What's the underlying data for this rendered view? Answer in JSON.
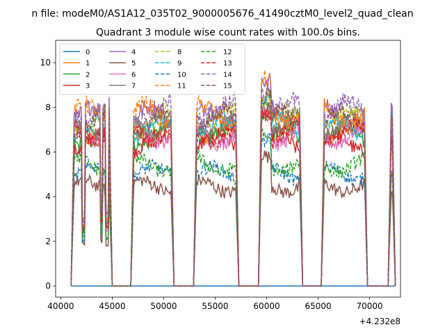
{
  "chart_data": {
    "type": "line",
    "suptitle": "n file: modeM0/AS1A12_035T02_9000005676_41490cztM0_level2_quad_clean",
    "title": "Quadrant 3 module wise count rates with 100.0s bins.",
    "xlabel": "",
    "ylabel": "",
    "x_offset_label": "+4.232e8",
    "xlim": [
      39500,
      73000
    ],
    "ylim": [
      -0.5,
      11.0
    ],
    "x_ticks": [
      40000,
      45000,
      50000,
      55000,
      60000,
      65000,
      70000
    ],
    "x_tick_labels": [
      "40000",
      "45000",
      "50000",
      "55000",
      "60000",
      "65000",
      "70000"
    ],
    "y_ticks": [
      0,
      2,
      4,
      6,
      8,
      10
    ],
    "y_tick_labels": [
      "0",
      "2",
      "4",
      "6",
      "8",
      "10"
    ],
    "legend_position": "top-left",
    "legend_columns": 4,
    "x_range": [
      41000,
      72500
    ],
    "gaps": [
      [
        45000,
        46800
      ],
      [
        51000,
        52900
      ],
      [
        57300,
        59200
      ],
      [
        63500,
        65300
      ],
      [
        69800,
        71800
      ]
    ],
    "segments": [
      {
        "start": 41000,
        "end": 45000,
        "dips": [
          [
            42200,
            0.2
          ],
          [
            43950,
            0.5
          ],
          [
            44500,
            0.3
          ]
        ]
      },
      {
        "start": 46800,
        "end": 51000,
        "dips": []
      },
      {
        "start": 52900,
        "end": 57300,
        "dips": []
      },
      {
        "start": 59200,
        "end": 63500,
        "dips": []
      },
      {
        "start": 65300,
        "end": 69800,
        "dips": []
      },
      {
        "start": 71800,
        "end": 72500,
        "dips": []
      }
    ],
    "series": [
      {
        "name": "0",
        "color": "#1f77b4",
        "dashed": false,
        "level": 0.0,
        "noise": 0.0
      },
      {
        "name": "1",
        "color": "#ff7f0e",
        "dashed": false,
        "level": 7.2,
        "noise": 0.35
      },
      {
        "name": "2",
        "color": "#2ca02c",
        "dashed": false,
        "level": 6.9,
        "noise": 0.35
      },
      {
        "name": "3",
        "color": "#d62728",
        "dashed": false,
        "level": 6.6,
        "noise": 0.35
      },
      {
        "name": "4",
        "color": "#9467bd",
        "dashed": false,
        "level": 7.8,
        "noise": 0.4
      },
      {
        "name": "5",
        "color": "#8c564b",
        "dashed": false,
        "level": 4.6,
        "noise": 0.3
      },
      {
        "name": "6",
        "color": "#e377c2",
        "dashed": false,
        "level": 7.0,
        "noise": 0.35
      },
      {
        "name": "7",
        "color": "#7f7f7f",
        "dashed": false,
        "level": 7.5,
        "noise": 0.35
      },
      {
        "name": "8",
        "color": "#bcbd22",
        "dashed": true,
        "level": 7.7,
        "noise": 0.4
      },
      {
        "name": "9",
        "color": "#17becf",
        "dashed": true,
        "level": 7.3,
        "noise": 0.35
      },
      {
        "name": "10",
        "color": "#1f77b4",
        "dashed": true,
        "level": 5.2,
        "noise": 0.3
      },
      {
        "name": "11",
        "color": "#ff7f0e",
        "dashed": true,
        "level": 7.9,
        "noise": 0.4
      },
      {
        "name": "12",
        "color": "#2ca02c",
        "dashed": true,
        "level": 5.6,
        "noise": 0.3
      },
      {
        "name": "13",
        "color": "#d62728",
        "dashed": true,
        "level": 7.1,
        "noise": 0.35
      },
      {
        "name": "14",
        "color": "#9467bd",
        "dashed": true,
        "level": 8.1,
        "noise": 0.4
      },
      {
        "name": "15",
        "color": "#8c564b",
        "dashed": true,
        "level": 7.6,
        "noise": 0.35
      }
    ]
  }
}
